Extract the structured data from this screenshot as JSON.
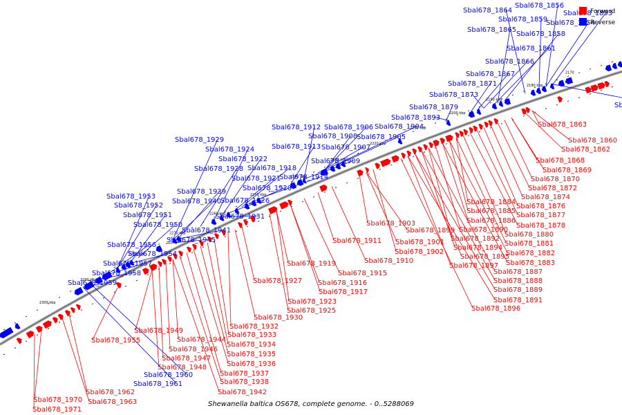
{
  "caption": "Shewanella baltica OS678, complete genome. - 0..5288069",
  "colors": {
    "forward": "#ff0000",
    "reverse": "#0000ff",
    "backbone": "#999999",
    "leader_forward": "#ff0000",
    "leader_reverse": "#0000ff"
  },
  "legend": [
    {
      "label": "Forward",
      "color": "#ff0000",
      "strand": "forward"
    },
    {
      "label": "Reverse",
      "color": "#0000ff",
      "strand": "reverse"
    }
  ],
  "ticks": [
    "2170",
    "2180 kbp",
    "2190 kbp",
    "2200 kbp",
    "2210 kbp",
    "2220 kbp",
    "2230 kbp",
    "2240 kbp",
    "2250 kbp",
    "2260 kbp",
    "2270 kbp",
    "2280 kbp",
    "2290 kbp",
    "2300 kbp"
  ],
  "reverse_labels": [
    "Sbal678_1864",
    "Sbal678_1856",
    "Sbal678_1853",
    "Sbal678_1859",
    "Sbal678_1854",
    "Sbal678_1865",
    "Sbal678_1858",
    "Sbal678_1861",
    "Sbal678_1866",
    "Sbal678_1867",
    "Sbal678_1871",
    "Sbal678_1873",
    "Sbal678_1857",
    "Sbal678_1879",
    "Sbal678_1893",
    "Sbal678_1912",
    "Sbal678_1906",
    "Sbal678_1904",
    "Sbal678_1908",
    "Sbal678_1905",
    "Sbal678_1929",
    "Sbal678_1913",
    "Sbal678_1907",
    "Sbal678_1924",
    "Sbal678_1922",
    "Sbal678_1909",
    "Sbal678_1928",
    "Sbal678_1918",
    "Sbal678_1921",
    "Sbal678_1914",
    "Sbal678_1920",
    "Sbal678_1939",
    "Sbal678_1953",
    "Sbal678_1940",
    "Sbal678_1926",
    "Sbal678_1952",
    "Sbal678_1931",
    "Sbal678_1951",
    "Sbal678_1950",
    "Sbal678_1941",
    "Sbal678_1945",
    "Sbal678_1956",
    "Sbal678_1954",
    "Sbal678_1957",
    "Sbal678_1958",
    "Sbal678_1959",
    "Sbal678_1960",
    "Sbal678_1961"
  ],
  "forward_labels": [
    "Sbal678_1863",
    "Sbal678_1860",
    "Sbal678_1862",
    "Sbal678_1868",
    "Sbal678_1869",
    "Sbal678_1870",
    "Sbal678_1872",
    "Sbal678_1874",
    "Sbal678_1884",
    "Sbal678_1876",
    "Sbal678_1885",
    "Sbal678_1877",
    "Sbal678_1886",
    "Sbal678_1878",
    "Sbal678_1903",
    "Sbal678_1899",
    "Sbal678_1890",
    "Sbal678_1880",
    "Sbal678_1911",
    "Sbal678_1901",
    "Sbal678_1892",
    "Sbal678_1881",
    "Sbal678_1902",
    "Sbal678_1894",
    "Sbal678_1882",
    "Sbal678_1910",
    "Sbal678_1895",
    "Sbal678_1883",
    "Sbal678_1919",
    "Sbal678_1897",
    "Sbal678_1887",
    "Sbal678_1915",
    "Sbal678_1888",
    "Sbal678_1927",
    "Sbal678_1916",
    "Sbal678_1889",
    "Sbal678_1917",
    "Sbal678_1891",
    "Sbal678_1923",
    "Sbal678_1896",
    "Sbal678_1925",
    "Sbal678_1930",
    "Sbal678_1932",
    "Sbal678_1949",
    "Sbal678_1933",
    "Sbal678_1955",
    "Sbal678_1944",
    "Sbal678_1934",
    "Sbal678_1946",
    "Sbal678_1935",
    "Sbal678_1947",
    "Sbal678_1936",
    "Sbal678_1948",
    "Sbal678_1937",
    "Sbal678_1938",
    "Sbal678_1942",
    "Sbal678_1962",
    "Sbal678_1970",
    "Sbal678_1963",
    "Sbal678_1971"
  ]
}
